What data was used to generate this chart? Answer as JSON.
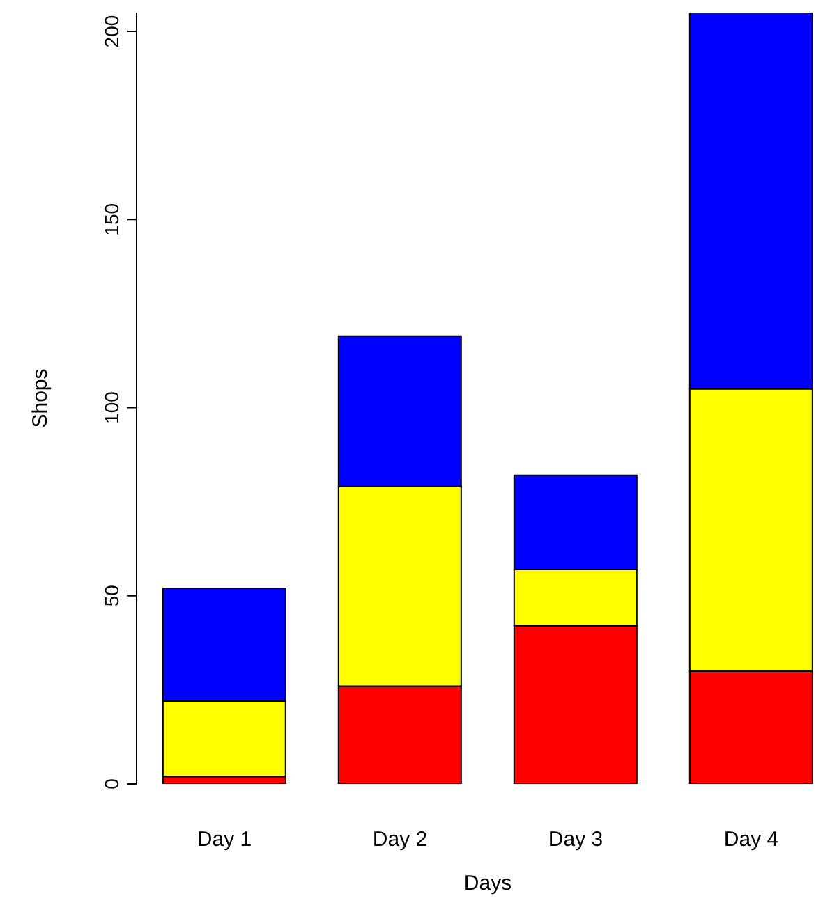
{
  "chart_data": {
    "type": "bar",
    "stacked": true,
    "xlabel": "Days",
    "ylabel": "Shops",
    "categories": [
      "Day 1",
      "Day 2",
      "Day 3",
      "Day 4"
    ],
    "series": [
      {
        "color": "#ff0000",
        "values": [
          2,
          26,
          42,
          30
        ]
      },
      {
        "color": "#ffff00",
        "values": [
          20,
          53,
          15,
          75
        ]
      },
      {
        "color": "#0000ff",
        "values": [
          30,
          40,
          25,
          100
        ]
      }
    ],
    "ylim": [
      0,
      205
    ],
    "yticks": [
      0,
      50,
      100,
      150,
      200
    ],
    "grid": false,
    "legend": false
  }
}
